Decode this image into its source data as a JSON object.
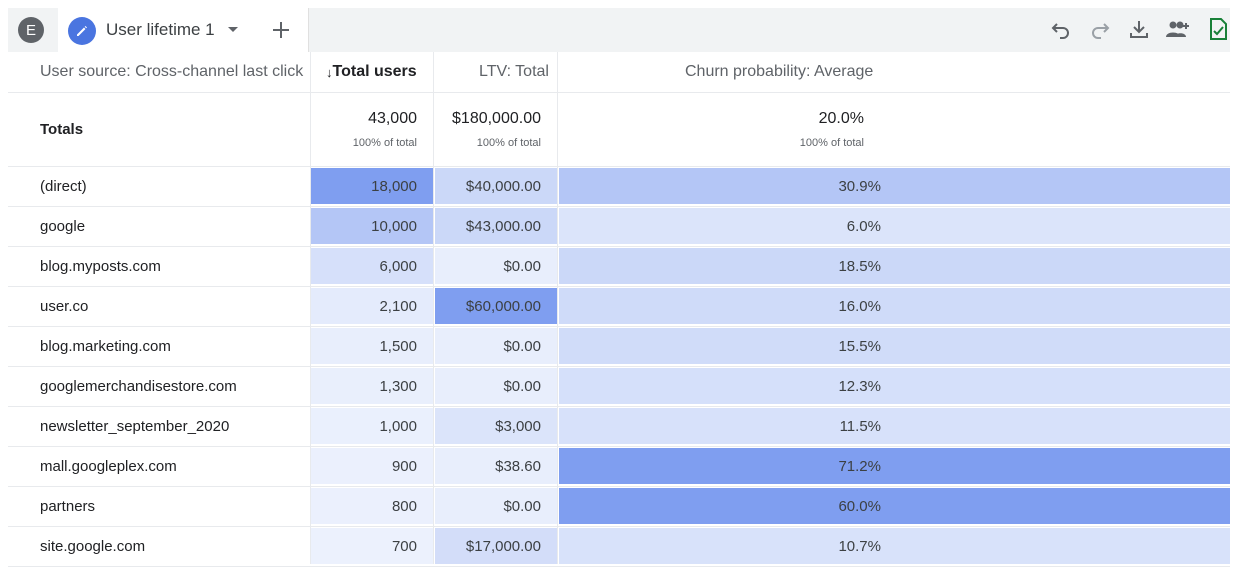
{
  "topbar": {
    "avatar_letter": "E",
    "tab_label": "User lifetime 1",
    "icons": [
      "pencil-icon",
      "caret-down-icon",
      "plus-icon",
      "undo-icon",
      "redo-icon",
      "download-icon",
      "share-users-icon",
      "check-doc-icon"
    ]
  },
  "table": {
    "headers": {
      "dimension": "User source: Cross-channel last click",
      "users": "Total users",
      "sort_arrow": "↓",
      "ltv": "LTV: Total",
      "churn": "Churn probability: Average"
    },
    "totals": {
      "label": "Totals",
      "users": "43,000",
      "users_pct": "100% of total",
      "ltv": "$180,000.00",
      "ltv_pct": "100% of total",
      "churn": "20.0%",
      "churn_pct": "100% of total"
    },
    "rows": [
      {
        "source": "(direct)",
        "users": "18,000",
        "ltv": "$40,000.00",
        "churn": "30.9%"
      },
      {
        "source": "google",
        "users": "10,000",
        "ltv": "$43,000.00",
        "churn": "6.0%"
      },
      {
        "source": "blog.myposts.com",
        "users": "6,000",
        "ltv": "$0.00",
        "churn": "18.5%"
      },
      {
        "source": "user.co",
        "users": "2,100",
        "ltv": "$60,000.00",
        "churn": "16.0%"
      },
      {
        "source": "blog.marketing.com",
        "users": "1,500",
        "ltv": "$0.00",
        "churn": "15.5%"
      },
      {
        "source": "googlemerchandisestore.com",
        "users": "1,300",
        "ltv": "$0.00",
        "churn": "12.3%"
      },
      {
        "source": "newsletter_september_2020",
        "users": "1,000",
        "ltv": "$3,000",
        "churn": "11.5%"
      },
      {
        "source": "mall.googleplex.com",
        "users": "900",
        "ltv": "$38.60",
        "churn": "71.2%"
      },
      {
        "source": "partners",
        "users": "800",
        "ltv": "$0.00",
        "churn": "60.0%"
      },
      {
        "source": "site.google.com",
        "users": "700",
        "ltv": "$17,000.00",
        "churn": "10.7%"
      }
    ]
  },
  "heat_colors": {
    "strong": "#7f9ef0",
    "mid_strong": "#98b1f2",
    "mid": "#b4c6f6",
    "light": "#cbd8f8",
    "lighter": "#dbe4fa",
    "lightest": "#e8eefc"
  }
}
